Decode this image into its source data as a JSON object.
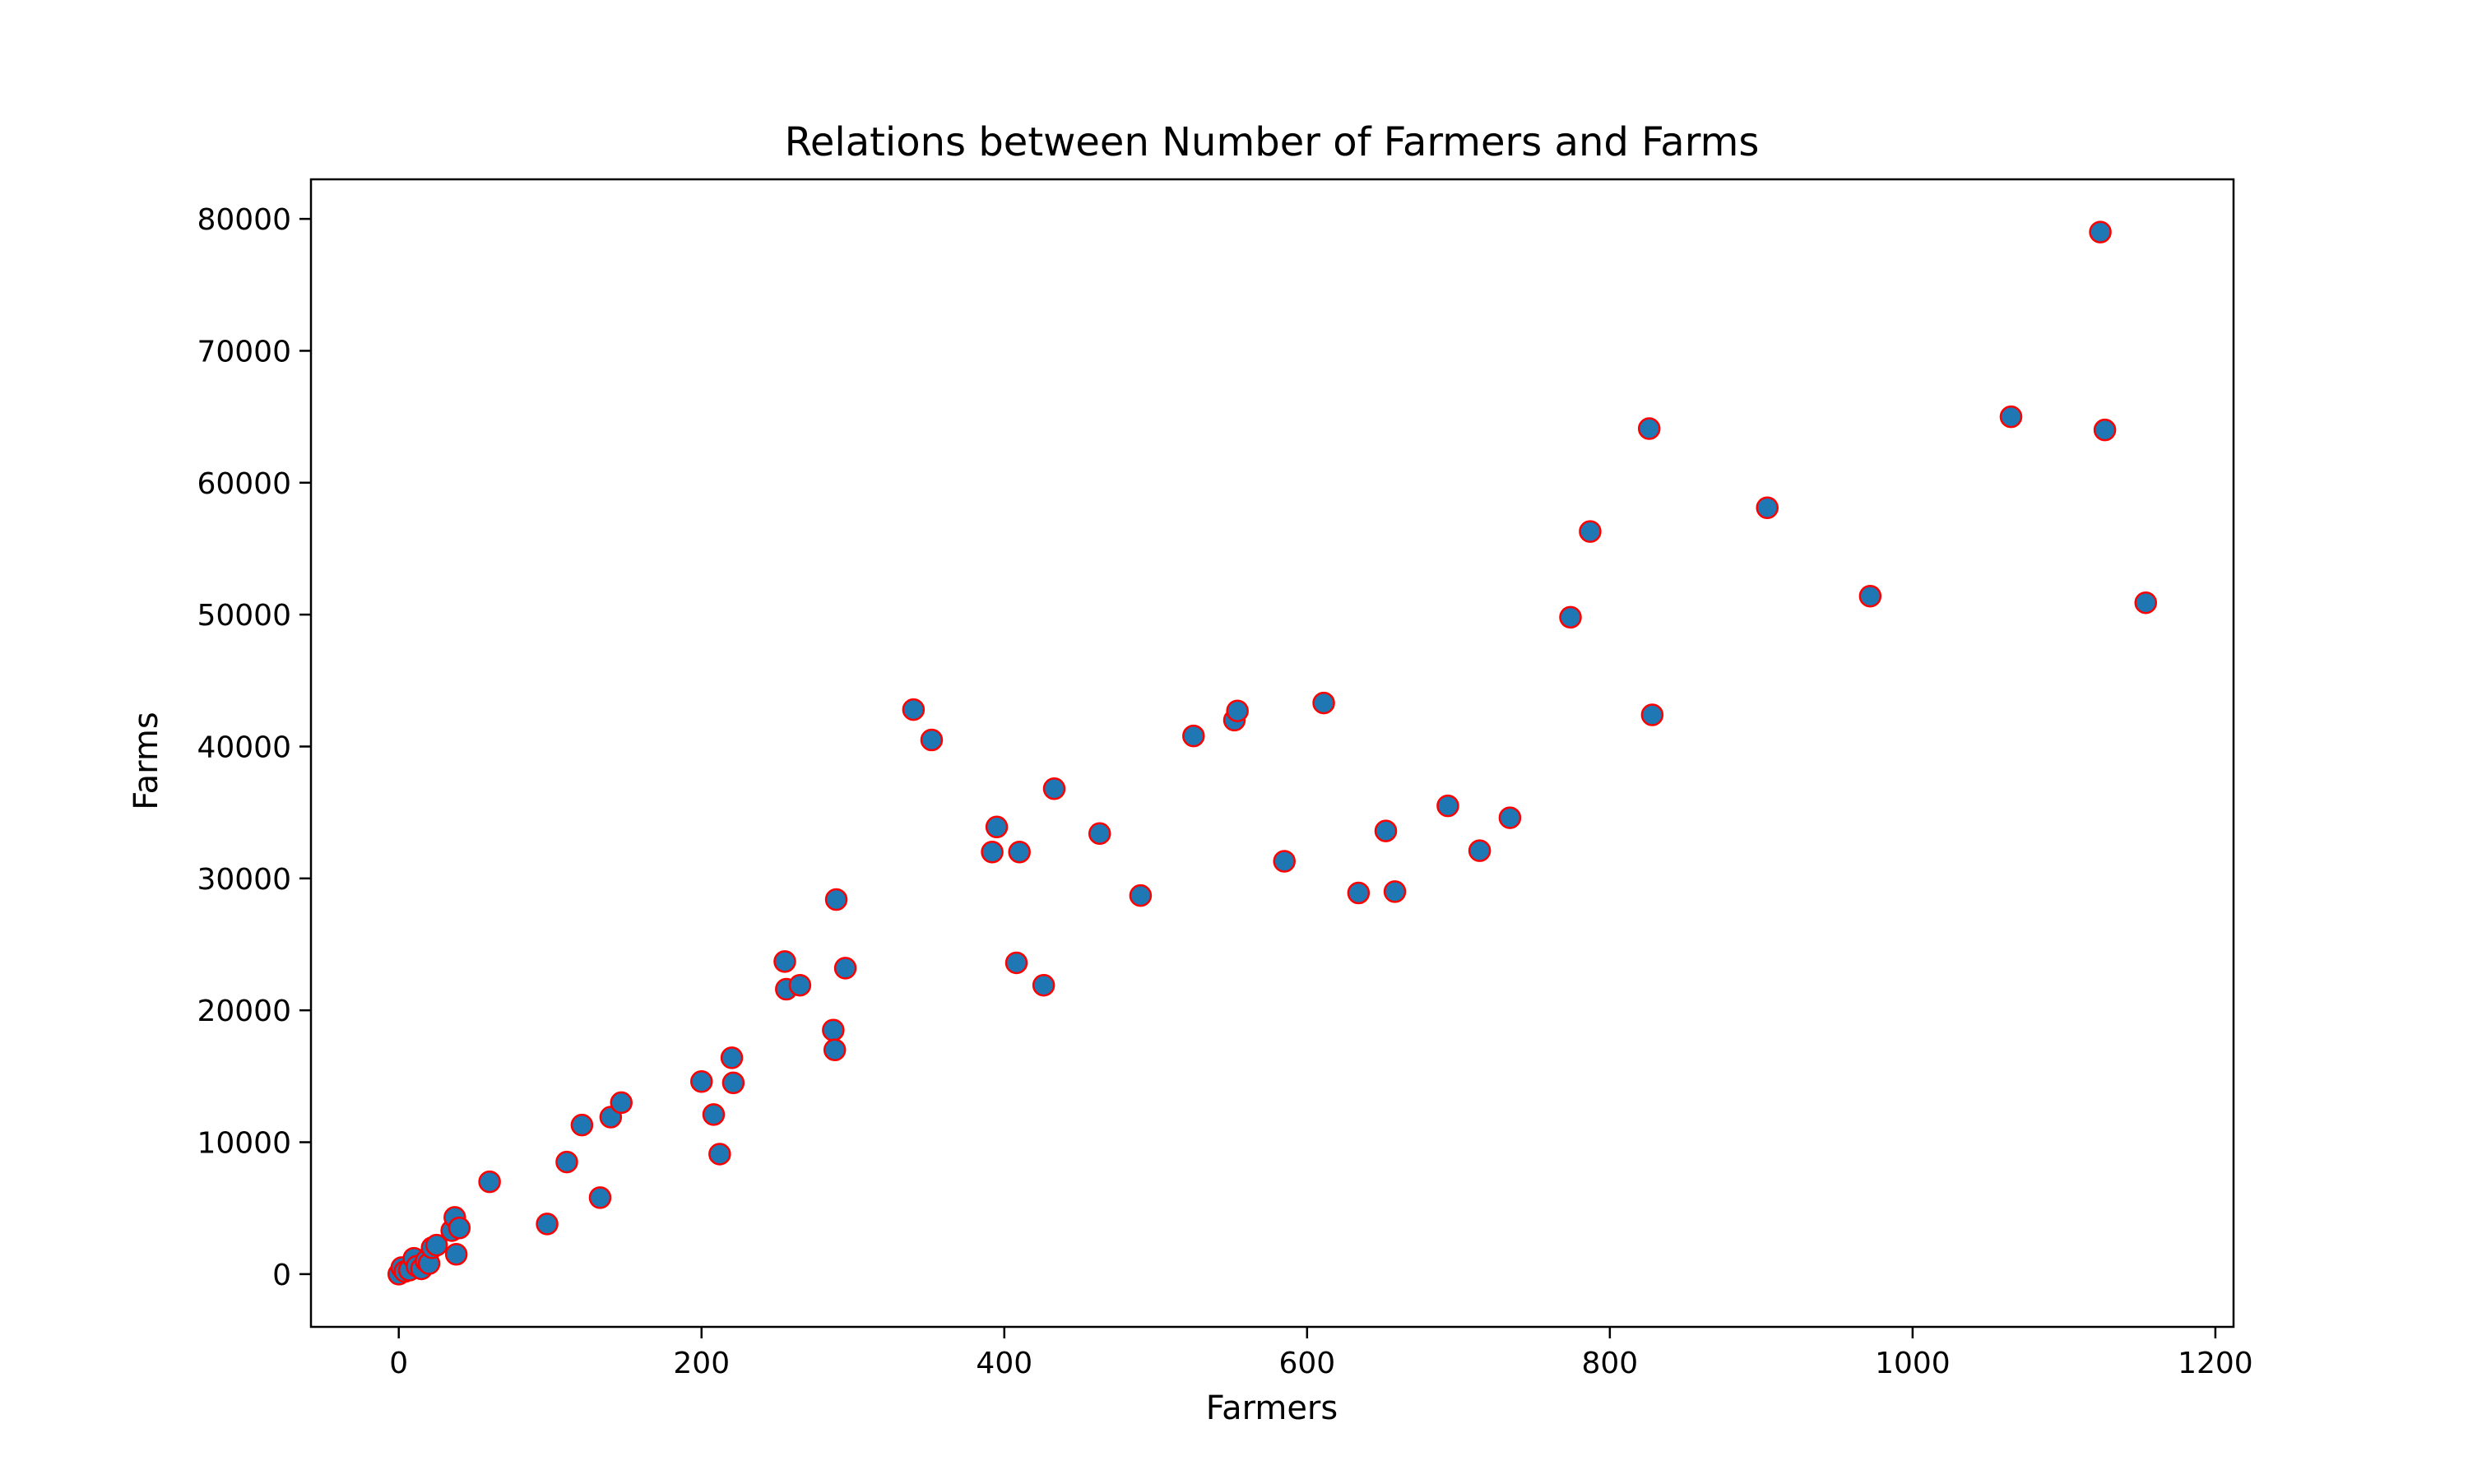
{
  "chart_data": {
    "type": "scatter",
    "title": "Relations between Number of Farmers and Farms",
    "xlabel": "Farmers",
    "ylabel": "Farms",
    "xlim": [
      -58,
      1212
    ],
    "ylim": [
      -4000,
      83000
    ],
    "xticks": [
      0,
      200,
      400,
      600,
      800,
      1000,
      1200
    ],
    "yticks": [
      0,
      10000,
      20000,
      30000,
      40000,
      50000,
      60000,
      70000,
      80000
    ],
    "xtick_labels": [
      "0",
      "200",
      "400",
      "600",
      "800",
      "1000",
      "1200"
    ],
    "ytick_labels": [
      "0",
      "10000",
      "20000",
      "30000",
      "40000",
      "50000",
      "60000",
      "70000",
      "80000"
    ],
    "grid": false,
    "marker": {
      "face_color": "#1f77b4",
      "edge_color": "#ff0000"
    },
    "series": [
      {
        "x": [
          0,
          2,
          4,
          7,
          10,
          12,
          15,
          18,
          20,
          22,
          25,
          35,
          37,
          38,
          40,
          60,
          98,
          111,
          121,
          133,
          140,
          147,
          200,
          208,
          212,
          220,
          221,
          255,
          256,
          265,
          287,
          288,
          289,
          295,
          340,
          352,
          392,
          395,
          408,
          410,
          426,
          433,
          463,
          490,
          525,
          552,
          554,
          585,
          611,
          634,
          652,
          658,
          693,
          714,
          734,
          774,
          787,
          826,
          828,
          904,
          972,
          1065,
          1124,
          1127,
          1154
        ],
        "y": [
          0,
          500,
          200,
          300,
          1200,
          600,
          400,
          1000,
          800,
          2000,
          2200,
          3300,
          4300,
          1500,
          3500,
          7000,
          3800,
          8500,
          11300,
          5800,
          11900,
          13000,
          14600,
          12100,
          9100,
          16400,
          14500,
          23700,
          21600,
          21900,
          18500,
          17000,
          28400,
          23200,
          42800,
          40500,
          32000,
          33900,
          23600,
          32000,
          21900,
          36800,
          33400,
          28700,
          40800,
          42000,
          42700,
          31300,
          43300,
          28900,
          33600,
          29000,
          35500,
          32100,
          34600,
          49800,
          56300,
          64100,
          42400,
          58100,
          51400,
          65000,
          79000,
          64000,
          50900
        ]
      }
    ]
  }
}
